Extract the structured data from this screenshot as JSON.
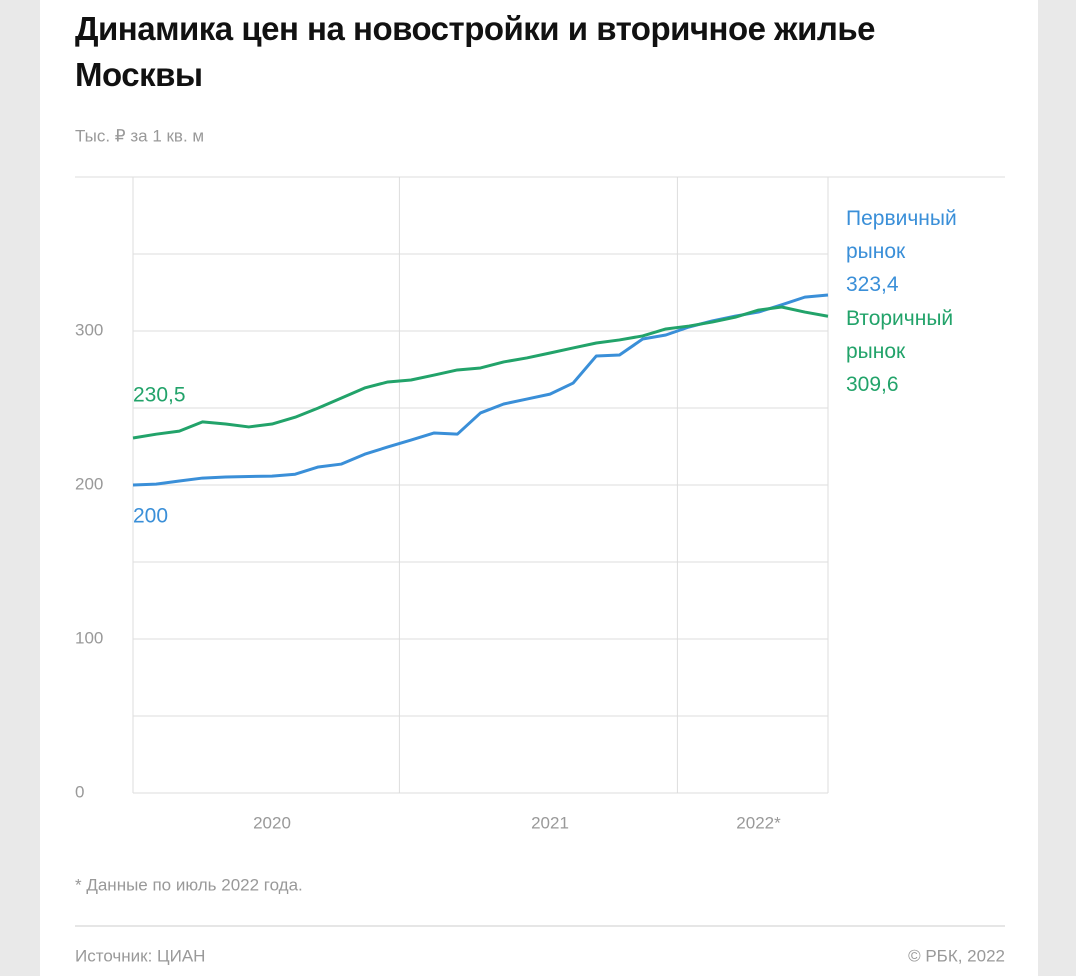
{
  "chart_data": {
    "type": "line",
    "title": "Динамика цен на новостройки и вторичное жилье Москвы",
    "subtitle": "Тыс. ₽ за 1 кв. м",
    "footnote": "* Данные по июль 2022 года.",
    "source": "Источник: ЦИАН",
    "copyright": "© РБК, 2022",
    "categories": [
      null,
      null,
      null,
      null,
      null,
      null,
      "2020",
      null,
      null,
      null,
      null,
      null,
      null,
      null,
      null,
      null,
      null,
      null,
      "2021",
      null,
      null,
      null,
      null,
      null,
      null,
      null,
      null,
      "2022*",
      null,
      null,
      null
    ],
    "xgrid": [
      11.5,
      23.5
    ],
    "ylim": [
      0,
      400
    ],
    "yticks": [
      0,
      100,
      200,
      300
    ],
    "minor_yticks": [
      50,
      150,
      250,
      350,
      400
    ],
    "grid": true,
    "series": [
      {
        "name": "Первичный рынок",
        "color": "#3a8fd8",
        "values": [
          200,
          200.6,
          202.6,
          204.5,
          205.2,
          205.5,
          205.8,
          207,
          211.7,
          213.6,
          220,
          224.7,
          229.2,
          233.8,
          233,
          246.8,
          252.6,
          255.8,
          259,
          266.2,
          283.8,
          284.4,
          294.8,
          297.4,
          302.6,
          306.5,
          309.7,
          312.3,
          317,
          322,
          323.4
        ],
        "start_label": "200",
        "end_label": "323,4"
      },
      {
        "name": "Вторичный рынок",
        "color": "#22a36a",
        "values": [
          230.5,
          233,
          235,
          241,
          239.6,
          237.7,
          239.6,
          244,
          250,
          256.5,
          263,
          266.9,
          268.2,
          271.4,
          274.7,
          276,
          279.9,
          282.5,
          285.7,
          289,
          292.2,
          294.2,
          296.8,
          301.3,
          303.2,
          305.8,
          309,
          313.6,
          315.6,
          312.3,
          309.6
        ],
        "start_label": "230,5",
        "end_label": "309,6"
      }
    ]
  }
}
